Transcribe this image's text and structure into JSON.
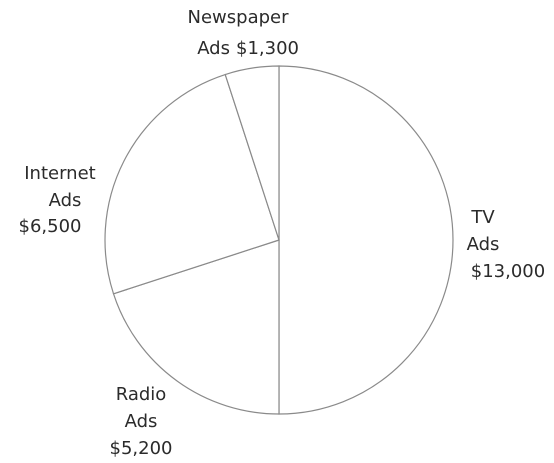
{
  "chart_data": {
    "type": "pie",
    "categories": [
      "TV Ads",
      "Radio Ads",
      "Internet Ads",
      "Newspaper Ads"
    ],
    "values": [
      13000,
      5200,
      6500,
      1300
    ],
    "start_angle_deg": 0,
    "direction": "clockwise",
    "slices": [
      {
        "name": "TV Ads",
        "label_lines": [
          "TV",
          "Ads"
        ],
        "value_label": "$13,000",
        "value": 13000
      },
      {
        "name": "Radio Ads",
        "label_lines": [
          "Radio",
          "Ads"
        ],
        "value_label": "$5,200",
        "value": 5200
      },
      {
        "name": "Internet Ads",
        "label_lines": [
          "Internet",
          "Ads"
        ],
        "value_label": "$6,500",
        "value": 6500
      },
      {
        "name": "Newspaper Ads",
        "label_lines": [
          "Newspaper",
          "Ads"
        ],
        "value_label": "$1,300",
        "value": 1300
      }
    ]
  }
}
